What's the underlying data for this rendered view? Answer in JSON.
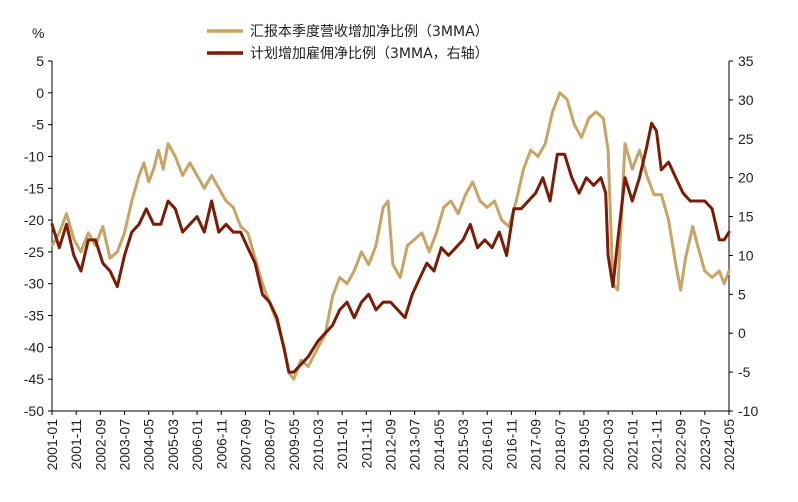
{
  "chart_data": {
    "type": "line",
    "unit_label": "%",
    "legend": [
      {
        "label": "汇报本季度营收增加净比例（3MMA）",
        "color": "#C8A465"
      },
      {
        "label": "计划增加雇佣净比例（3MMA，右轴）",
        "color": "#7A1C06"
      }
    ],
    "left_axis": {
      "min": -50,
      "max": 5,
      "ticks": [
        "5",
        "0",
        "-5",
        "-10",
        "-15",
        "-20",
        "-25",
        "-30",
        "-35",
        "-40",
        "-45",
        "-50"
      ]
    },
    "right_axis": {
      "min": -10,
      "max": 35,
      "ticks": [
        "35",
        "30",
        "25",
        "20",
        "15",
        "10",
        "5",
        "0",
        "-5",
        "-10"
      ]
    },
    "x_axis": {
      "start": "2001-01",
      "end": "2024-05",
      "ticks": [
        "2001-01",
        "2001-11",
        "2002-09",
        "2003-07",
        "2004-05",
        "2005-03",
        "2006-01",
        "2006-11",
        "2007-09",
        "2008-07",
        "2009-05",
        "2010-03",
        "2011-01",
        "2011-11",
        "2012-09",
        "2013-07",
        "2014-05",
        "2015-03",
        "2016-01",
        "2016-11",
        "2017-09",
        "2018-07",
        "2019-05",
        "2020-03",
        "2021-01",
        "2021-11",
        "2022-09",
        "2023-07",
        "2024-05"
      ]
    },
    "series": [
      {
        "name": "汇报本季度营收增加净比例（3MMA）",
        "axis": "left",
        "color": "#C8A465",
        "points": [
          [
            "2001-01",
            -24
          ],
          [
            "2001-04",
            -22
          ],
          [
            "2001-07",
            -19
          ],
          [
            "2001-10",
            -23
          ],
          [
            "2002-01",
            -25
          ],
          [
            "2002-04",
            -22
          ],
          [
            "2002-07",
            -24
          ],
          [
            "2002-10",
            -21
          ],
          [
            "2003-01",
            -26
          ],
          [
            "2003-04",
            -25
          ],
          [
            "2003-07",
            -22
          ],
          [
            "2003-10",
            -17
          ],
          [
            "2004-01",
            -13
          ],
          [
            "2004-03",
            -11
          ],
          [
            "2004-05",
            -14
          ],
          [
            "2004-07",
            -12
          ],
          [
            "2004-09",
            -9
          ],
          [
            "2004-11",
            -12
          ],
          [
            "2005-01",
            -8
          ],
          [
            "2005-04",
            -10
          ],
          [
            "2005-07",
            -13
          ],
          [
            "2005-10",
            -11
          ],
          [
            "2006-01",
            -13
          ],
          [
            "2006-04",
            -15
          ],
          [
            "2006-07",
            -13
          ],
          [
            "2006-10",
            -15
          ],
          [
            "2007-01",
            -17
          ],
          [
            "2007-04",
            -18
          ],
          [
            "2007-07",
            -21
          ],
          [
            "2007-10",
            -22
          ],
          [
            "2008-01",
            -26
          ],
          [
            "2008-04",
            -30
          ],
          [
            "2008-07",
            -33
          ],
          [
            "2008-10",
            -36
          ],
          [
            "2009-01",
            -40
          ],
          [
            "2009-03",
            -44
          ],
          [
            "2009-05",
            -45
          ],
          [
            "2009-08",
            -42
          ],
          [
            "2009-11",
            -43
          ],
          [
            "2010-03",
            -40
          ],
          [
            "2010-06",
            -38
          ],
          [
            "2010-09",
            -32
          ],
          [
            "2010-12",
            -29
          ],
          [
            "2011-03",
            -30
          ],
          [
            "2011-06",
            -28
          ],
          [
            "2011-09",
            -25
          ],
          [
            "2011-12",
            -27
          ],
          [
            "2012-03",
            -24
          ],
          [
            "2012-06",
            -18
          ],
          [
            "2012-08",
            -17
          ],
          [
            "2012-10",
            -27
          ],
          [
            "2013-01",
            -29
          ],
          [
            "2013-04",
            -24
          ],
          [
            "2013-07",
            -23
          ],
          [
            "2013-10",
            -22
          ],
          [
            "2014-01",
            -25
          ],
          [
            "2014-04",
            -22
          ],
          [
            "2014-07",
            -18
          ],
          [
            "2014-10",
            -17
          ],
          [
            "2015-01",
            -19
          ],
          [
            "2015-04",
            -16
          ],
          [
            "2015-07",
            -14
          ],
          [
            "2015-10",
            -17
          ],
          [
            "2016-01",
            -18
          ],
          [
            "2016-04",
            -17
          ],
          [
            "2016-07",
            -20
          ],
          [
            "2016-10",
            -21
          ],
          [
            "2017-01",
            -17
          ],
          [
            "2017-04",
            -12
          ],
          [
            "2017-07",
            -9
          ],
          [
            "2017-10",
            -10
          ],
          [
            "2018-01",
            -8
          ],
          [
            "2018-04",
            -3
          ],
          [
            "2018-07",
            0
          ],
          [
            "2018-10",
            -1
          ],
          [
            "2019-01",
            -5
          ],
          [
            "2019-04",
            -7
          ],
          [
            "2019-07",
            -4
          ],
          [
            "2019-10",
            -3
          ],
          [
            "2020-01",
            -4
          ],
          [
            "2020-03",
            -9
          ],
          [
            "2020-05",
            -30
          ],
          [
            "2020-07",
            -31
          ],
          [
            "2020-10",
            -8
          ],
          [
            "2021-01",
            -12
          ],
          [
            "2021-04",
            -9
          ],
          [
            "2021-07",
            -13
          ],
          [
            "2021-10",
            -16
          ],
          [
            "2022-01",
            -16
          ],
          [
            "2022-04",
            -20
          ],
          [
            "2022-07",
            -27
          ],
          [
            "2022-09",
            -31
          ],
          [
            "2022-11",
            -26
          ],
          [
            "2023-02",
            -21
          ],
          [
            "2023-04",
            -24
          ],
          [
            "2023-07",
            -28
          ],
          [
            "2023-10",
            -29
          ],
          [
            "2024-01",
            -28
          ],
          [
            "2024-03",
            -30
          ],
          [
            "2024-05",
            -28
          ]
        ]
      },
      {
        "name": "计划增加雇佣净比例（3MMA，右轴）",
        "axis": "right",
        "color": "#7A1C06",
        "points": [
          [
            "2001-01",
            14
          ],
          [
            "2001-04",
            11
          ],
          [
            "2001-07",
            14
          ],
          [
            "2001-10",
            10
          ],
          [
            "2002-01",
            8
          ],
          [
            "2002-04",
            12
          ],
          [
            "2002-07",
            12
          ],
          [
            "2002-10",
            9
          ],
          [
            "2003-01",
            8
          ],
          [
            "2003-04",
            6
          ],
          [
            "2003-07",
            10
          ],
          [
            "2003-10",
            13
          ],
          [
            "2004-01",
            14
          ],
          [
            "2004-04",
            16
          ],
          [
            "2004-07",
            14
          ],
          [
            "2004-10",
            14
          ],
          [
            "2005-01",
            17
          ],
          [
            "2005-04",
            16
          ],
          [
            "2005-07",
            13
          ],
          [
            "2005-10",
            14
          ],
          [
            "2006-01",
            15
          ],
          [
            "2006-04",
            13
          ],
          [
            "2006-07",
            17
          ],
          [
            "2006-10",
            13
          ],
          [
            "2007-01",
            14
          ],
          [
            "2007-04",
            13
          ],
          [
            "2007-07",
            13
          ],
          [
            "2007-10",
            11
          ],
          [
            "2008-01",
            9
          ],
          [
            "2008-04",
            5
          ],
          [
            "2008-07",
            4
          ],
          [
            "2008-10",
            2
          ],
          [
            "2009-01",
            -2
          ],
          [
            "2009-03",
            -5
          ],
          [
            "2009-05",
            -5
          ],
          [
            "2009-08",
            -4
          ],
          [
            "2009-11",
            -3
          ],
          [
            "2010-03",
            -1
          ],
          [
            "2010-06",
            0
          ],
          [
            "2010-09",
            1
          ],
          [
            "2010-12",
            3
          ],
          [
            "2011-03",
            4
          ],
          [
            "2011-06",
            2
          ],
          [
            "2011-09",
            4
          ],
          [
            "2011-12",
            5
          ],
          [
            "2012-03",
            3
          ],
          [
            "2012-06",
            4
          ],
          [
            "2012-09",
            4
          ],
          [
            "2012-12",
            3
          ],
          [
            "2013-03",
            2
          ],
          [
            "2013-06",
            5
          ],
          [
            "2013-09",
            7
          ],
          [
            "2013-12",
            9
          ],
          [
            "2014-03",
            8
          ],
          [
            "2014-06",
            11
          ],
          [
            "2014-09",
            10
          ],
          [
            "2014-12",
            11
          ],
          [
            "2015-03",
            12
          ],
          [
            "2015-06",
            14
          ],
          [
            "2015-09",
            11
          ],
          [
            "2015-12",
            12
          ],
          [
            "2016-03",
            11
          ],
          [
            "2016-06",
            13
          ],
          [
            "2016-09",
            10
          ],
          [
            "2016-12",
            16
          ],
          [
            "2017-03",
            16
          ],
          [
            "2017-06",
            17
          ],
          [
            "2017-09",
            18
          ],
          [
            "2017-12",
            20
          ],
          [
            "2018-03",
            17
          ],
          [
            "2018-06",
            23
          ],
          [
            "2018-09",
            23
          ],
          [
            "2018-12",
            20
          ],
          [
            "2019-03",
            18
          ],
          [
            "2019-06",
            20
          ],
          [
            "2019-09",
            19
          ],
          [
            "2019-12",
            20
          ],
          [
            "2020-02",
            18
          ],
          [
            "2020-03",
            10
          ],
          [
            "2020-05",
            6
          ],
          [
            "2020-07",
            12
          ],
          [
            "2020-10",
            20
          ],
          [
            "2021-01",
            17
          ],
          [
            "2021-04",
            20
          ],
          [
            "2021-07",
            24
          ],
          [
            "2021-09",
            27
          ],
          [
            "2021-11",
            26
          ],
          [
            "2022-01",
            21
          ],
          [
            "2022-04",
            22
          ],
          [
            "2022-07",
            20
          ],
          [
            "2022-10",
            18
          ],
          [
            "2023-01",
            17
          ],
          [
            "2023-04",
            17
          ],
          [
            "2023-07",
            17
          ],
          [
            "2023-10",
            16
          ],
          [
            "2024-01",
            12
          ],
          [
            "2024-03",
            12
          ],
          [
            "2024-05",
            13
          ]
        ]
      }
    ]
  }
}
